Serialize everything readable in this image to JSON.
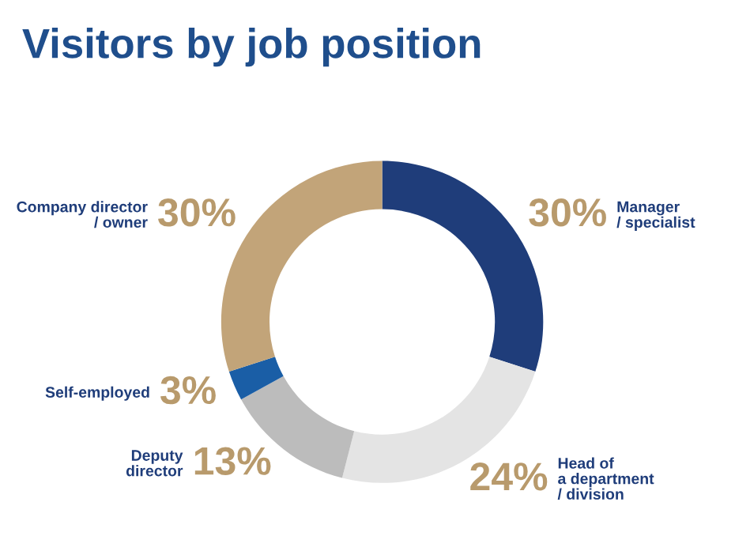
{
  "chart_data": {
    "type": "donut",
    "title": "Visitors by job position",
    "categories": [
      "Manager\n/ specialist",
      "Head of\na department\n/ division",
      "Deputy\ndirector",
      "Self-employed",
      "Company director\n/ owner"
    ],
    "values": [
      30,
      24,
      13,
      3,
      30
    ],
    "value_labels": [
      "30%",
      "24%",
      "13%",
      "3%",
      "30%"
    ],
    "colors": [
      "#1f3d7a",
      "#e4e4e4",
      "#bcbcbc",
      "#1a5ea6",
      "#c2a479"
    ]
  }
}
